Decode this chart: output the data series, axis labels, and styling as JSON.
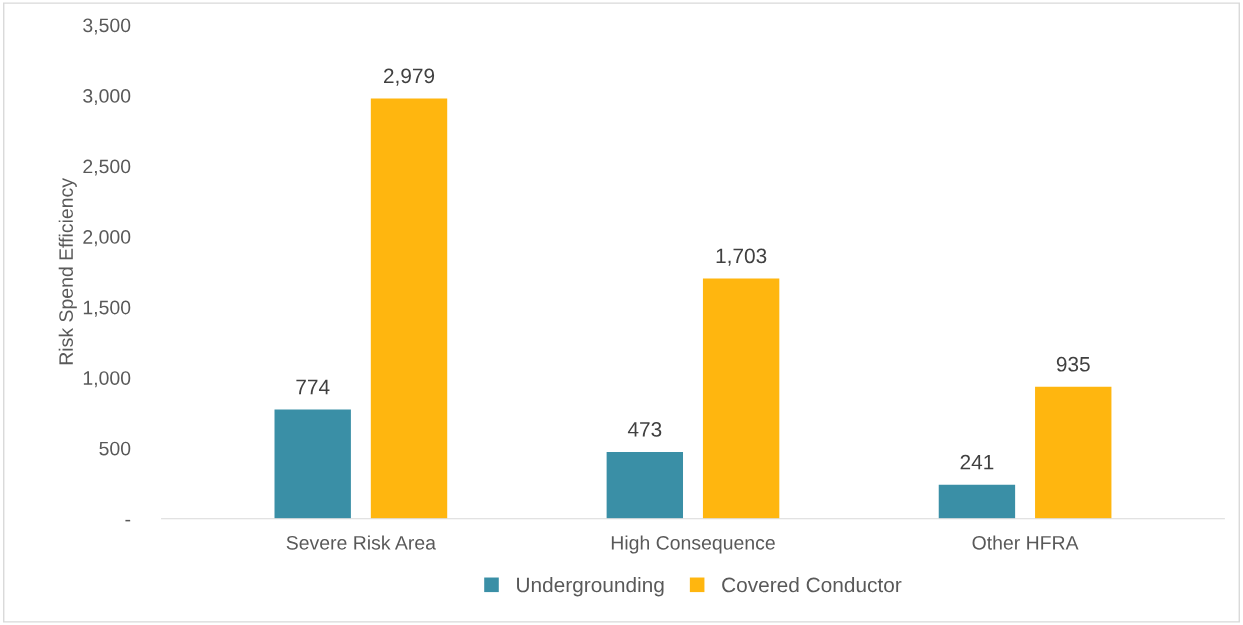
{
  "chart_data": {
    "type": "bar",
    "ylabel": "Risk Spend Efficiency",
    "categories": [
      "Severe Risk Area",
      "High Consequence",
      "Other HFRA"
    ],
    "series": [
      {
        "name": "Undergrounding",
        "color": "#3a8fa6",
        "values": [
          774,
          473,
          241
        ],
        "value_labels": [
          "774",
          "473",
          "241"
        ]
      },
      {
        "name": "Covered Conductor",
        "color": "#ffb60f",
        "values": [
          2979,
          1703,
          935
        ],
        "value_labels": [
          "2,979",
          "1,703",
          "935"
        ]
      }
    ],
    "ylim": [
      0,
      3500
    ],
    "yticks": [
      {
        "value": 0,
        "label": "-"
      },
      {
        "value": 500,
        "label": "500"
      },
      {
        "value": 1000,
        "label": "1,000"
      },
      {
        "value": 1500,
        "label": "1,500"
      },
      {
        "value": 2000,
        "label": "2,000"
      },
      {
        "value": 2500,
        "label": "2,500"
      },
      {
        "value": 3000,
        "label": "3,000"
      },
      {
        "value": 3500,
        "label": "3,500"
      }
    ],
    "grid": false,
    "legend": "bottom"
  }
}
